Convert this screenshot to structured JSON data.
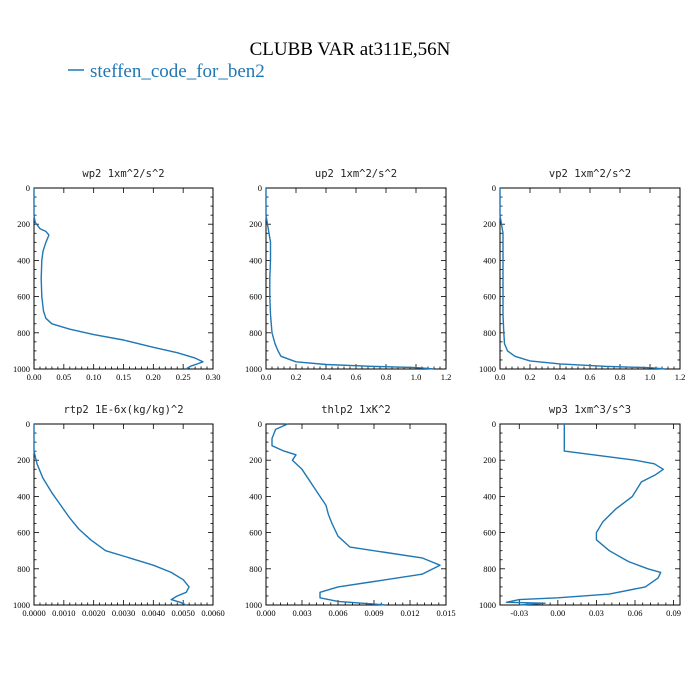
{
  "figure": {
    "title": "CLUBB VAR at311E,56N",
    "legend": {
      "label": "steffen_code_for_ben2",
      "color": "#1f77b4"
    }
  },
  "chart_data": [
    {
      "type": "line",
      "title": "wp2  1xm^2/s^2",
      "xlim": [
        0,
        0.3
      ],
      "ylim": [
        1000,
        0
      ],
      "xticks": [
        0,
        0.05,
        0.1,
        0.15,
        0.2,
        0.25,
        0.3
      ],
      "xtick_labels": [
        "0.00",
        "0.05",
        "0.10",
        "0.15",
        "0.20",
        "0.25",
        "0.30"
      ],
      "yticks": [
        0,
        200,
        400,
        600,
        800,
        1000
      ],
      "ytick_labels": [
        "0",
        "200",
        "400",
        "600",
        "800",
        "1000"
      ],
      "series": [
        {
          "color": "#1f77b4",
          "x": [
            0,
            0,
            0.002,
            0.01,
            0.02,
            0.025,
            0.02,
            0.015,
            0.013,
            0.012,
            0.013,
            0.016,
            0.02,
            0.03,
            0.06,
            0.1,
            0.15,
            0.2,
            0.24,
            0.27,
            0.283,
            0.275,
            0.262,
            0.255
          ],
          "y": [
            0,
            150,
            190,
            225,
            240,
            260,
            300,
            350,
            400,
            500,
            600,
            680,
            720,
            750,
            780,
            810,
            840,
            880,
            910,
            940,
            960,
            970,
            985,
            1000
          ]
        }
      ]
    },
    {
      "type": "line",
      "title": "up2  1xm^2/s^2",
      "xlim": [
        0,
        1.2
      ],
      "ylim": [
        1000,
        0
      ],
      "xticks": [
        0,
        0.2,
        0.4,
        0.6,
        0.8,
        1.0,
        1.2
      ],
      "xtick_labels": [
        "0.0",
        "0.2",
        "0.4",
        "0.6",
        "0.8",
        "1.0",
        "1.2"
      ],
      "yticks": [
        0,
        200,
        400,
        600,
        800,
        1000
      ],
      "ytick_labels": [
        "0",
        "200",
        "400",
        "600",
        "800",
        "1000"
      ],
      "series": [
        {
          "color": "#1f77b4",
          "x": [
            0,
            0,
            0.01,
            0.02,
            0.03,
            0.03,
            0.025,
            0.025,
            0.03,
            0.04,
            0.06,
            0.08,
            0.1,
            0.2,
            0.4,
            0.7,
            1.0,
            1.12
          ],
          "y": [
            0,
            150,
            200,
            250,
            300,
            400,
            500,
            600,
            700,
            800,
            860,
            900,
            930,
            960,
            975,
            985,
            992,
            1000
          ]
        }
      ]
    },
    {
      "type": "line",
      "title": "vp2  1xm^2/s^2",
      "xlim": [
        0,
        1.2
      ],
      "ylim": [
        1000,
        0
      ],
      "xticks": [
        0,
        0.2,
        0.4,
        0.6,
        0.8,
        1.0,
        1.2
      ],
      "xtick_labels": [
        "0.0",
        "0.2",
        "0.4",
        "0.6",
        "0.8",
        "1.0",
        "1.2"
      ],
      "yticks": [
        0,
        200,
        400,
        600,
        800,
        1000
      ],
      "ytick_labels": [
        "0",
        "200",
        "400",
        "600",
        "800",
        "1000"
      ],
      "series": [
        {
          "color": "#1f77b4",
          "x": [
            0,
            0,
            0.01,
            0.02,
            0.02,
            0.02,
            0.02,
            0.025,
            0.03,
            0.05,
            0.1,
            0.2,
            0.4,
            0.7,
            1.0,
            1.1
          ],
          "y": [
            0,
            150,
            200,
            250,
            400,
            600,
            700,
            800,
            860,
            900,
            930,
            955,
            972,
            985,
            993,
            1000
          ]
        }
      ]
    },
    {
      "type": "line",
      "title": "rtp2  1E-6x(kg/kg)^2",
      "xlim": [
        0,
        0.006
      ],
      "ylim": [
        1000,
        0
      ],
      "xticks": [
        0,
        0.001,
        0.002,
        0.003,
        0.004,
        0.005,
        0.006
      ],
      "xtick_labels": [
        "0.0000",
        "0.0010",
        "0.0020",
        "0.0030",
        "0.0040",
        "0.0050",
        "0.0060"
      ],
      "yticks": [
        0,
        200,
        400,
        600,
        800,
        1000
      ],
      "ytick_labels": [
        "0",
        "200",
        "400",
        "600",
        "800",
        "1000"
      ],
      "series": [
        {
          "color": "#1f77b4",
          "x": [
            0,
            0,
            0.0001,
            0.0003,
            0.0006,
            0.0009,
            0.0012,
            0.0015,
            0.0019,
            0.0024,
            0.0032,
            0.004,
            0.0046,
            0.005,
            0.0052,
            0.0051,
            0.0048,
            0.0046,
            0.0049,
            0.0051
          ],
          "y": [
            0,
            150,
            220,
            300,
            380,
            450,
            520,
            580,
            640,
            700,
            740,
            780,
            820,
            860,
            900,
            930,
            950,
            970,
            985,
            1000
          ]
        }
      ]
    },
    {
      "type": "line",
      "title": "thlp2  1xK^2",
      "xlim": [
        0,
        0.015
      ],
      "ylim": [
        1000,
        0
      ],
      "xticks": [
        0,
        0.003,
        0.006,
        0.009,
        0.012,
        0.015
      ],
      "xtick_labels": [
        "0.000",
        "0.003",
        "0.006",
        "0.009",
        "0.012",
        "0.015"
      ],
      "yticks": [
        0,
        200,
        400,
        600,
        800,
        1000
      ],
      "ytick_labels": [
        "0",
        "200",
        "400",
        "600",
        "800",
        "1000"
      ],
      "series": [
        {
          "color": "#1f77b4",
          "x": [
            0.0018,
            0.0008,
            0.0005,
            0.0005,
            0.0015,
            0.0025,
            0.0022,
            0.003,
            0.0035,
            0.004,
            0.0045,
            0.005,
            0.0052,
            0.0055,
            0.006,
            0.007,
            0.01,
            0.013,
            0.0145,
            0.013,
            0.009,
            0.006,
            0.0045,
            0.0045,
            0.006,
            0.009,
            0.01
          ],
          "y": [
            0,
            30,
            80,
            120,
            150,
            170,
            200,
            250,
            300,
            350,
            400,
            450,
            500,
            550,
            620,
            680,
            710,
            740,
            780,
            830,
            870,
            900,
            930,
            960,
            980,
            995,
            1000
          ]
        }
      ]
    },
    {
      "type": "line",
      "title": "wp3  1xm^3/s^3",
      "xlim": [
        -0.045,
        0.095
      ],
      "ylim": [
        1000,
        0
      ],
      "xticks": [
        -0.03,
        0,
        0.03,
        0.06,
        0.09
      ],
      "xtick_labels": [
        "-0.03",
        "0.00",
        "0.03",
        "0.06",
        "0.09"
      ],
      "yticks": [
        0,
        200,
        400,
        600,
        800,
        1000
      ],
      "ytick_labels": [
        "0",
        "200",
        "400",
        "600",
        "800",
        "1000"
      ],
      "series": [
        {
          "color": "#1f77b4",
          "x": [
            0.005,
            0.005,
            0.005,
            0.06,
            0.075,
            0.082,
            0.076,
            0.065,
            0.058,
            0.045,
            0.035,
            0.03,
            0.03,
            0.04,
            0.055,
            0.07,
            0.08,
            0.078,
            0.068,
            0.04,
            0.0,
            -0.03,
            -0.04,
            -0.01,
            -0.03
          ],
          "y": [
            0,
            100,
            150,
            200,
            220,
            250,
            280,
            320,
            400,
            470,
            540,
            600,
            640,
            700,
            760,
            800,
            820,
            850,
            900,
            940,
            960,
            970,
            985,
            990,
            1000
          ]
        }
      ]
    }
  ]
}
